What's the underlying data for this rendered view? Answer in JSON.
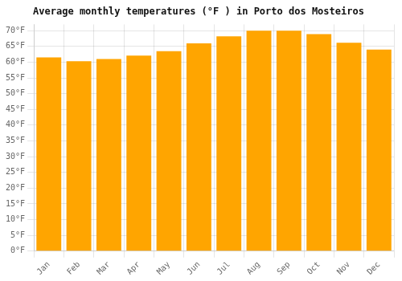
{
  "chart_data": {
    "type": "bar",
    "title": "Average monthly temperatures (°F ) in Porto dos Mosteiros",
    "categories": [
      "Jan",
      "Feb",
      "Mar",
      "Apr",
      "May",
      "Jun",
      "Jul",
      "Aug",
      "Sep",
      "Oct",
      "Nov",
      "Dec"
    ],
    "values": [
      61.5,
      60.3,
      61.0,
      62.1,
      63.5,
      66.0,
      68.2,
      70.0,
      70.0,
      68.9,
      66.2,
      64.0
    ],
    "color": "#FFA500",
    "ylim": [
      0,
      72
    ],
    "yticks": [
      {
        "value": 0,
        "label": "0°F"
      },
      {
        "value": 5,
        "label": "5°F"
      },
      {
        "value": 10,
        "label": "10°F"
      },
      {
        "value": 15,
        "label": "15°F"
      },
      {
        "value": 20,
        "label": "20°F"
      },
      {
        "value": 25,
        "label": "25°F"
      },
      {
        "value": 30,
        "label": "30°F"
      },
      {
        "value": 35,
        "label": "35°F"
      },
      {
        "value": 40,
        "label": "40°F"
      },
      {
        "value": 45,
        "label": "45°F"
      },
      {
        "value": 50,
        "label": "50°F"
      },
      {
        "value": 55,
        "label": "55°F"
      },
      {
        "value": 60,
        "label": "60°F"
      },
      {
        "value": 65,
        "label": "65°F"
      },
      {
        "value": 70,
        "label": "70°F"
      }
    ],
    "grid": true
  }
}
